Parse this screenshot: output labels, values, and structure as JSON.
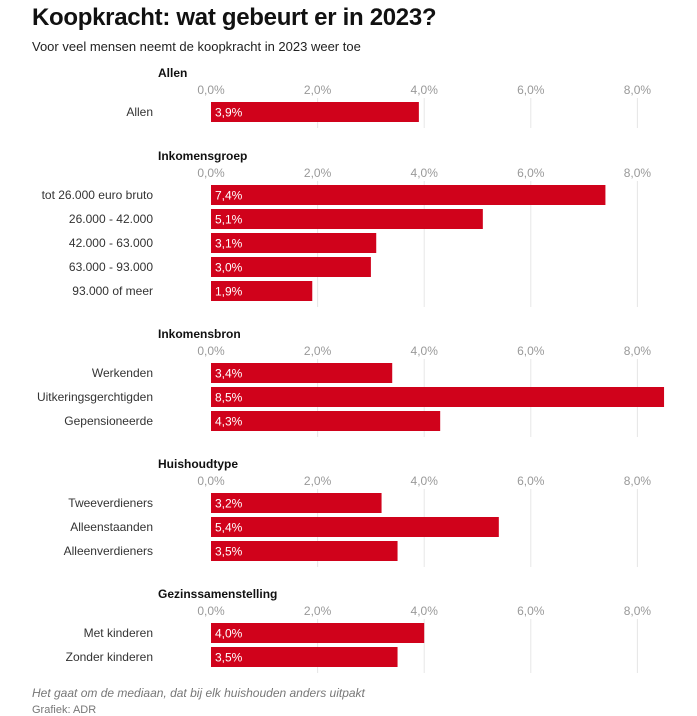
{
  "title": "Koopkracht: wat gebeurt er in 2023?",
  "subtitle": "Voor veel mensen neemt de koopkracht in 2023 weer toe",
  "note": "Het gaat om de mediaan, dat bij elk huishouden anders uitpakt",
  "credit": "Grafiek: ADR",
  "colors": {
    "bar": "#d0021b",
    "grid": "#e6e6e6",
    "tick": "#999999",
    "label": "#333333",
    "value": "#ffffff"
  },
  "chart_data": {
    "type": "bar",
    "orientation": "horizontal",
    "title": "Koopkracht: wat gebeurt er in 2023?",
    "xlim": [
      0,
      8.5
    ],
    "ticks": [
      {
        "value": 0,
        "label": "0,0%"
      },
      {
        "value": 2,
        "label": "2,0%"
      },
      {
        "value": 4,
        "label": "4,0%"
      },
      {
        "value": 6,
        "label": "6,0%"
      },
      {
        "value": 8,
        "label": "8,0%"
      }
    ],
    "groups": [
      {
        "name": "Allen",
        "categories": [
          "Allen"
        ],
        "values": [
          3.9
        ],
        "labels": [
          "3,9%"
        ]
      },
      {
        "name": "Inkomensgroep",
        "categories": [
          "tot 26.000 euro bruto",
          "26.000 - 42.000",
          "42.000 - 63.000",
          "63.000 - 93.000",
          "93.000 of meer"
        ],
        "values": [
          7.4,
          5.1,
          3.1,
          3.0,
          1.9
        ],
        "labels": [
          "7,4%",
          "5,1%",
          "3,1%",
          "3,0%",
          "1,9%"
        ]
      },
      {
        "name": "Inkomensbron",
        "categories": [
          "Werkenden",
          "Uitkeringsgerchtigden",
          "Gepensioneerde"
        ],
        "values": [
          3.4,
          8.5,
          4.3
        ],
        "labels": [
          "3,4%",
          "8,5%",
          "4,3%"
        ]
      },
      {
        "name": "Huishoudtype",
        "categories": [
          "Tweeverdieners",
          "Alleenstaanden",
          "Alleenverdieners"
        ],
        "values": [
          3.2,
          5.4,
          3.5
        ],
        "labels": [
          "3,2%",
          "5,4%",
          "3,5%"
        ]
      },
      {
        "name": "Gezinssamenstelling",
        "categories": [
          "Met kinderen",
          "Zonder kinderen"
        ],
        "values": [
          4.0,
          3.5
        ],
        "labels": [
          "4,0%",
          "3,5%"
        ]
      }
    ]
  }
}
